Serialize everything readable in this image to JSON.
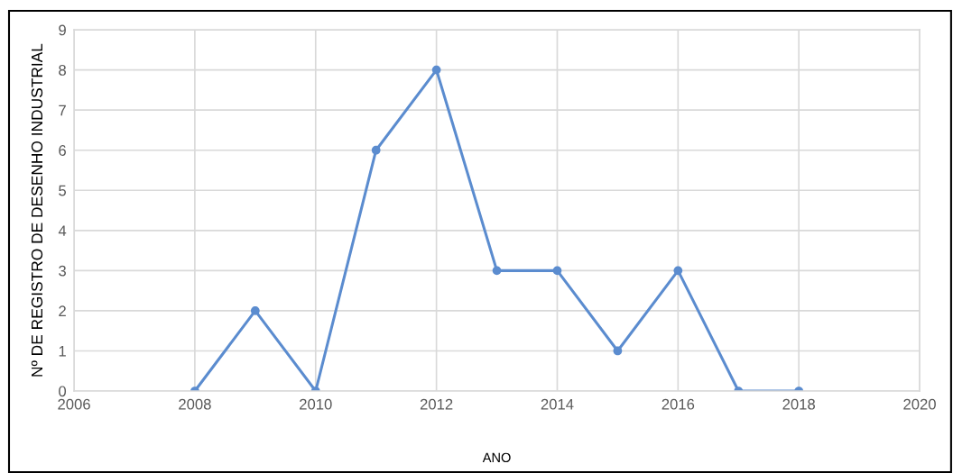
{
  "chart_data": {
    "type": "line",
    "xlabel": "ANO",
    "ylabel": "Nº DE REGISTRO DE DESENHO INDUSTRIAL",
    "x": [
      2008,
      2009,
      2010,
      2011,
      2012,
      2013,
      2014,
      2015,
      2016,
      2017,
      2018
    ],
    "series": [
      {
        "color": "#5b8ccf",
        "values": [
          0,
          2,
          0,
          6,
          8,
          3,
          3,
          1,
          3,
          0,
          0
        ]
      }
    ],
    "xlim": [
      2006,
      2020
    ],
    "xticks": [
      2006,
      2008,
      2010,
      2012,
      2014,
      2016,
      2018,
      2020
    ],
    "ylim": [
      0,
      9
    ],
    "yticks": [
      0,
      1,
      2,
      3,
      4,
      5,
      6,
      7,
      8,
      9
    ],
    "grid": true,
    "marker": "circle",
    "line_style": "solid"
  }
}
